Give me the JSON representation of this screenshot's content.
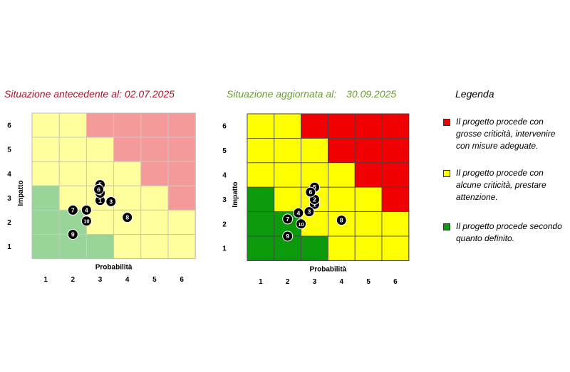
{
  "chart_data": [
    {
      "type": "heatmap",
      "title": "Situazione antecedente al: 02.07.2025",
      "xlabel": "Probabilità",
      "ylabel": "Impatto",
      "x_ticks": [
        "1",
        "2",
        "3",
        "4",
        "5",
        "6"
      ],
      "y_ticks": [
        "1",
        "2",
        "3",
        "4",
        "5",
        "6"
      ],
      "palette": {
        "G": "#99d499",
        "Y": "#ffff9e",
        "R": "#f59a9a"
      },
      "grid_rows_top_to_bottom": [
        [
          "Y",
          "Y",
          "R",
          "R",
          "R",
          "R"
        ],
        [
          "Y",
          "Y",
          "Y",
          "R",
          "R",
          "R"
        ],
        [
          "Y",
          "Y",
          "Y",
          "Y",
          "R",
          "R"
        ],
        [
          "G",
          "Y",
          "Y",
          "Y",
          "Y",
          "R"
        ],
        [
          "G",
          "G",
          "Y",
          "Y",
          "Y",
          "Y"
        ],
        [
          "G",
          "G",
          "G",
          "Y",
          "Y",
          "Y"
        ]
      ],
      "points": [
        {
          "label": "1",
          "x": 3.0,
          "y": 2.9
        },
        {
          "label": "2",
          "x": 3.0,
          "y": 3.2
        },
        {
          "label": "3",
          "x": 3.4,
          "y": 2.85
        },
        {
          "label": "4",
          "x": 2.5,
          "y": 2.5
        },
        {
          "label": "5",
          "x": 3.0,
          "y": 3.55
        },
        {
          "label": "6",
          "x": 2.95,
          "y": 3.35
        },
        {
          "label": "7",
          "x": 2.0,
          "y": 2.5
        },
        {
          "label": "8",
          "x": 4.0,
          "y": 2.2
        },
        {
          "label": "9",
          "x": 2.0,
          "y": 1.5
        },
        {
          "label": "10",
          "x": 2.5,
          "y": 2.05
        }
      ]
    },
    {
      "type": "heatmap",
      "title": "Situazione aggiornata al:",
      "title_date": "30.09.2025",
      "xlabel": "Probabilità",
      "ylabel": "Impatto",
      "x_ticks": [
        "1",
        "2",
        "3",
        "4",
        "5",
        "6"
      ],
      "y_ticks": [
        "1",
        "2",
        "3",
        "4",
        "5",
        "6"
      ],
      "palette": {
        "G": "#0c9a0c",
        "Y": "#ffff00",
        "R": "#f00000"
      },
      "grid_rows_top_to_bottom": [
        [
          "Y",
          "Y",
          "R",
          "R",
          "R",
          "R"
        ],
        [
          "Y",
          "Y",
          "Y",
          "R",
          "R",
          "R"
        ],
        [
          "Y",
          "Y",
          "Y",
          "Y",
          "R",
          "R"
        ],
        [
          "G",
          "Y",
          "Y",
          "Y",
          "Y",
          "R"
        ],
        [
          "G",
          "G",
          "Y",
          "Y",
          "Y",
          "Y"
        ],
        [
          "G",
          "G",
          "G",
          "Y",
          "Y",
          "Y"
        ]
      ],
      "points": [
        {
          "label": "1",
          "x": 3.0,
          "y": 2.8
        },
        {
          "label": "2",
          "x": 3.0,
          "y": 3.0
        },
        {
          "label": "3",
          "x": 2.8,
          "y": 2.5
        },
        {
          "label": "4",
          "x": 2.4,
          "y": 2.45
        },
        {
          "label": "5",
          "x": 3.0,
          "y": 3.5
        },
        {
          "label": "6",
          "x": 2.85,
          "y": 3.3
        },
        {
          "label": "7",
          "x": 2.0,
          "y": 2.2
        },
        {
          "label": "8",
          "x": 4.0,
          "y": 2.15
        },
        {
          "label": "9",
          "x": 2.0,
          "y": 1.5
        },
        {
          "label": "10",
          "x": 2.5,
          "y": 2.0
        }
      ]
    }
  ],
  "legend": {
    "title": "Legenda",
    "items": [
      {
        "color": "#f00000",
        "text": "Il progetto procede con grosse criticità, intervenire con misure adeguate."
      },
      {
        "color": "#ffff00",
        "text": "Il progetto procede con alcune criticità, prestare attenzione."
      },
      {
        "color": "#0c9a0c",
        "text": "Il progetto procede secondo quanto definito."
      }
    ]
  }
}
